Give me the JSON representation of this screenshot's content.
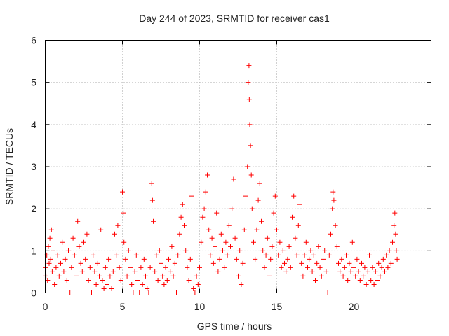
{
  "chart_data": {
    "type": "scatter",
    "title": "Day 244 of 2023, SRMTID for receiver cas1",
    "xlabel": "GPS time / hours",
    "ylabel": "SRMTID / TECUs",
    "xlim": [
      0,
      25
    ],
    "ylim": [
      0,
      6
    ],
    "xticks": [
      0,
      5,
      10,
      15,
      20
    ],
    "yticks": [
      0,
      1,
      2,
      3,
      4,
      5,
      6
    ],
    "grid": true,
    "marker": "plus",
    "series_color": "#ff0000",
    "series": [
      {
        "name": "cas1",
        "points": [
          [
            0.0,
            0.6
          ],
          [
            0.05,
            0.4
          ],
          [
            0.1,
            0.9
          ],
          [
            0.15,
            0.3
          ],
          [
            0.2,
            1.1
          ],
          [
            0.25,
            0.7
          ],
          [
            0.3,
            1.3
          ],
          [
            0.35,
            0.8
          ],
          [
            0.4,
            1.5
          ],
          [
            0.45,
            0.5
          ],
          [
            0.5,
            1.0
          ],
          [
            0.6,
            0.2
          ],
          [
            0.7,
            0.6
          ],
          [
            0.8,
            0.9
          ],
          [
            0.9,
            0.4
          ],
          [
            1.0,
            0.7
          ],
          [
            1.1,
            1.2
          ],
          [
            1.2,
            0.5
          ],
          [
            1.3,
            0.8
          ],
          [
            1.4,
            0.3
          ],
          [
            1.5,
            1.0
          ],
          [
            1.6,
            0.0
          ],
          [
            1.7,
            0.6
          ],
          [
            1.8,
            1.3
          ],
          [
            1.9,
            0.9
          ],
          [
            2.0,
            0.4
          ],
          [
            2.1,
            1.7
          ],
          [
            2.2,
            1.1
          ],
          [
            2.3,
            0.7
          ],
          [
            2.4,
            0.5
          ],
          [
            2.5,
            1.2
          ],
          [
            2.6,
            0.8
          ],
          [
            2.7,
            1.4
          ],
          [
            2.8,
            0.3
          ],
          [
            2.9,
            0.6
          ],
          [
            3.0,
            0.0
          ],
          [
            3.1,
            0.9
          ],
          [
            3.2,
            0.5
          ],
          [
            3.3,
            0.2
          ],
          [
            3.4,
            0.7
          ],
          [
            3.5,
            0.4
          ],
          [
            3.6,
            1.5
          ],
          [
            3.7,
            0.3
          ],
          [
            3.8,
            0.1
          ],
          [
            3.9,
            0.6
          ],
          [
            4.0,
            0.2
          ],
          [
            4.1,
            0.8
          ],
          [
            4.2,
            0.4
          ],
          [
            4.3,
            0.1
          ],
          [
            4.4,
            0.5
          ],
          [
            4.5,
            1.4
          ],
          [
            4.6,
            0.9
          ],
          [
            4.7,
            1.6
          ],
          [
            4.8,
            0.6
          ],
          [
            4.9,
            0.3
          ],
          [
            5.0,
            2.4
          ],
          [
            5.05,
            1.9
          ],
          [
            5.1,
            1.2
          ],
          [
            5.2,
            0.8
          ],
          [
            5.3,
            0.4
          ],
          [
            5.4,
            1.0
          ],
          [
            5.5,
            0.6
          ],
          [
            5.6,
            0.2
          ],
          [
            5.7,
            0.0
          ],
          [
            5.8,
            0.5
          ],
          [
            5.9,
            0.9
          ],
          [
            6.0,
            0.3
          ],
          [
            6.1,
            0.0
          ],
          [
            6.2,
            0.6
          ],
          [
            6.3,
            0.2
          ],
          [
            6.4,
            0.8
          ],
          [
            6.5,
            0.4
          ],
          [
            6.6,
            0.1
          ],
          [
            6.7,
            0.0
          ],
          [
            6.8,
            0.6
          ],
          [
            6.9,
            2.6
          ],
          [
            6.95,
            2.2
          ],
          [
            7.0,
            1.7
          ],
          [
            7.1,
            0.5
          ],
          [
            7.2,
            0.9
          ],
          [
            7.3,
            0.3
          ],
          [
            7.4,
            1.0
          ],
          [
            7.5,
            0.7
          ],
          [
            7.6,
            0.4
          ],
          [
            7.7,
            0.2
          ],
          [
            7.8,
            0.6
          ],
          [
            7.9,
            0.3
          ],
          [
            8.0,
            0.8
          ],
          [
            8.1,
            0.5
          ],
          [
            8.2,
            1.1
          ],
          [
            8.3,
            0.4
          ],
          [
            8.4,
            0.7
          ],
          [
            8.5,
            0.0
          ],
          [
            8.6,
            0.9
          ],
          [
            8.7,
            1.4
          ],
          [
            8.8,
            1.8
          ],
          [
            8.9,
            2.1
          ],
          [
            9.0,
            1.6
          ],
          [
            9.1,
            1.0
          ],
          [
            9.2,
            0.6
          ],
          [
            9.3,
            0.3
          ],
          [
            9.4,
            0.8
          ],
          [
            9.5,
            2.3
          ],
          [
            9.6,
            0.1
          ],
          [
            9.7,
            0.0
          ],
          [
            9.8,
            0.4
          ],
          [
            9.9,
            0.2
          ],
          [
            10.0,
            0.6
          ],
          [
            10.1,
            1.2
          ],
          [
            10.2,
            1.8
          ],
          [
            10.3,
            2.0
          ],
          [
            10.4,
            2.4
          ],
          [
            10.5,
            2.8
          ],
          [
            10.6,
            1.5
          ],
          [
            10.7,
            0.9
          ],
          [
            10.8,
            1.3
          ],
          [
            10.9,
            0.7
          ],
          [
            11.0,
            1.1
          ],
          [
            11.1,
            1.9
          ],
          [
            11.2,
            0.5
          ],
          [
            11.3,
            0.8
          ],
          [
            11.4,
            1.4
          ],
          [
            11.5,
            1.0
          ],
          [
            11.6,
            0.6
          ],
          [
            11.7,
            1.2
          ],
          [
            11.8,
            0.9
          ],
          [
            11.9,
            1.6
          ],
          [
            12.0,
            1.1
          ],
          [
            12.1,
            2.0
          ],
          [
            12.2,
            2.7
          ],
          [
            12.3,
            1.3
          ],
          [
            12.4,
            0.8
          ],
          [
            12.5,
            0.4
          ],
          [
            12.6,
            1.0
          ],
          [
            12.7,
            0.2
          ],
          [
            12.8,
            0.7
          ],
          [
            12.9,
            1.5
          ],
          [
            13.0,
            2.3
          ],
          [
            13.1,
            3.0
          ],
          [
            13.15,
            5.0
          ],
          [
            13.2,
            5.4
          ],
          [
            13.22,
            4.6
          ],
          [
            13.25,
            4.0
          ],
          [
            13.3,
            3.5
          ],
          [
            13.35,
            2.8
          ],
          [
            13.4,
            2.0
          ],
          [
            13.5,
            1.2
          ],
          [
            13.6,
            0.8
          ],
          [
            13.7,
            1.5
          ],
          [
            13.8,
            2.2
          ],
          [
            13.9,
            2.6
          ],
          [
            14.0,
            1.7
          ],
          [
            14.1,
            1.0
          ],
          [
            14.2,
            0.6
          ],
          [
            14.3,
            0.9
          ],
          [
            14.4,
            1.3
          ],
          [
            14.5,
            0.4
          ],
          [
            14.6,
            0.8
          ],
          [
            14.7,
            1.1
          ],
          [
            14.8,
            1.9
          ],
          [
            14.9,
            2.3
          ],
          [
            15.0,
            1.5
          ],
          [
            15.1,
            0.9
          ],
          [
            15.2,
            1.2
          ],
          [
            15.3,
            0.6
          ],
          [
            15.4,
            1.0
          ],
          [
            15.5,
            0.7
          ],
          [
            15.6,
            0.5
          ],
          [
            15.7,
            0.8
          ],
          [
            15.8,
            1.1
          ],
          [
            15.9,
            0.6
          ],
          [
            16.0,
            1.8
          ],
          [
            16.1,
            2.3
          ],
          [
            16.2,
            1.3
          ],
          [
            16.3,
            0.9
          ],
          [
            16.4,
            1.6
          ],
          [
            16.5,
            2.1
          ],
          [
            16.6,
            0.7
          ],
          [
            16.7,
            0.4
          ],
          [
            16.8,
            0.9
          ],
          [
            16.9,
            1.2
          ],
          [
            17.0,
            0.6
          ],
          [
            17.1,
            0.8
          ],
          [
            17.2,
            1.0
          ],
          [
            17.3,
            0.5
          ],
          [
            17.4,
            0.9
          ],
          [
            17.5,
            0.3
          ],
          [
            17.6,
            0.7
          ],
          [
            17.7,
            1.1
          ],
          [
            17.8,
            0.6
          ],
          [
            17.9,
            0.4
          ],
          [
            18.0,
            0.8
          ],
          [
            18.1,
            1.0
          ],
          [
            18.2,
            0.5
          ],
          [
            18.3,
            0.0
          ],
          [
            18.4,
            0.9
          ],
          [
            18.5,
            1.4
          ],
          [
            18.6,
            2.0
          ],
          [
            18.65,
            2.4
          ],
          [
            18.7,
            2.2
          ],
          [
            18.8,
            1.6
          ],
          [
            18.9,
            1.1
          ],
          [
            19.0,
            0.7
          ],
          [
            19.1,
            0.5
          ],
          [
            19.2,
            0.8
          ],
          [
            19.3,
            0.4
          ],
          [
            19.4,
            0.6
          ],
          [
            19.5,
            0.9
          ],
          [
            19.6,
            0.3
          ],
          [
            19.7,
            0.7
          ],
          [
            19.8,
            0.5
          ],
          [
            19.9,
            1.2
          ],
          [
            20.0,
            0.6
          ],
          [
            20.1,
            0.4
          ],
          [
            20.2,
            0.8
          ],
          [
            20.3,
            0.5
          ],
          [
            20.4,
            0.3
          ],
          [
            20.5,
            0.7
          ],
          [
            20.6,
            0.4
          ],
          [
            20.7,
            0.6
          ],
          [
            20.8,
            0.2
          ],
          [
            20.9,
            0.5
          ],
          [
            21.0,
            0.9
          ],
          [
            21.1,
            0.3
          ],
          [
            21.2,
            0.6
          ],
          [
            21.3,
            0.2
          ],
          [
            21.4,
            0.5
          ],
          [
            21.5,
            0.3
          ],
          [
            21.6,
            0.7
          ],
          [
            21.7,
            0.4
          ],
          [
            21.8,
            0.6
          ],
          [
            21.9,
            0.8
          ],
          [
            22.0,
            0.5
          ],
          [
            22.1,
            0.9
          ],
          [
            22.2,
            0.6
          ],
          [
            22.3,
            1.0
          ],
          [
            22.4,
            0.7
          ],
          [
            22.5,
            1.2
          ],
          [
            22.6,
            1.6
          ],
          [
            22.65,
            1.9
          ],
          [
            22.7,
            1.4
          ],
          [
            22.75,
            1.0
          ],
          [
            22.8,
            0.8
          ]
        ]
      }
    ]
  }
}
